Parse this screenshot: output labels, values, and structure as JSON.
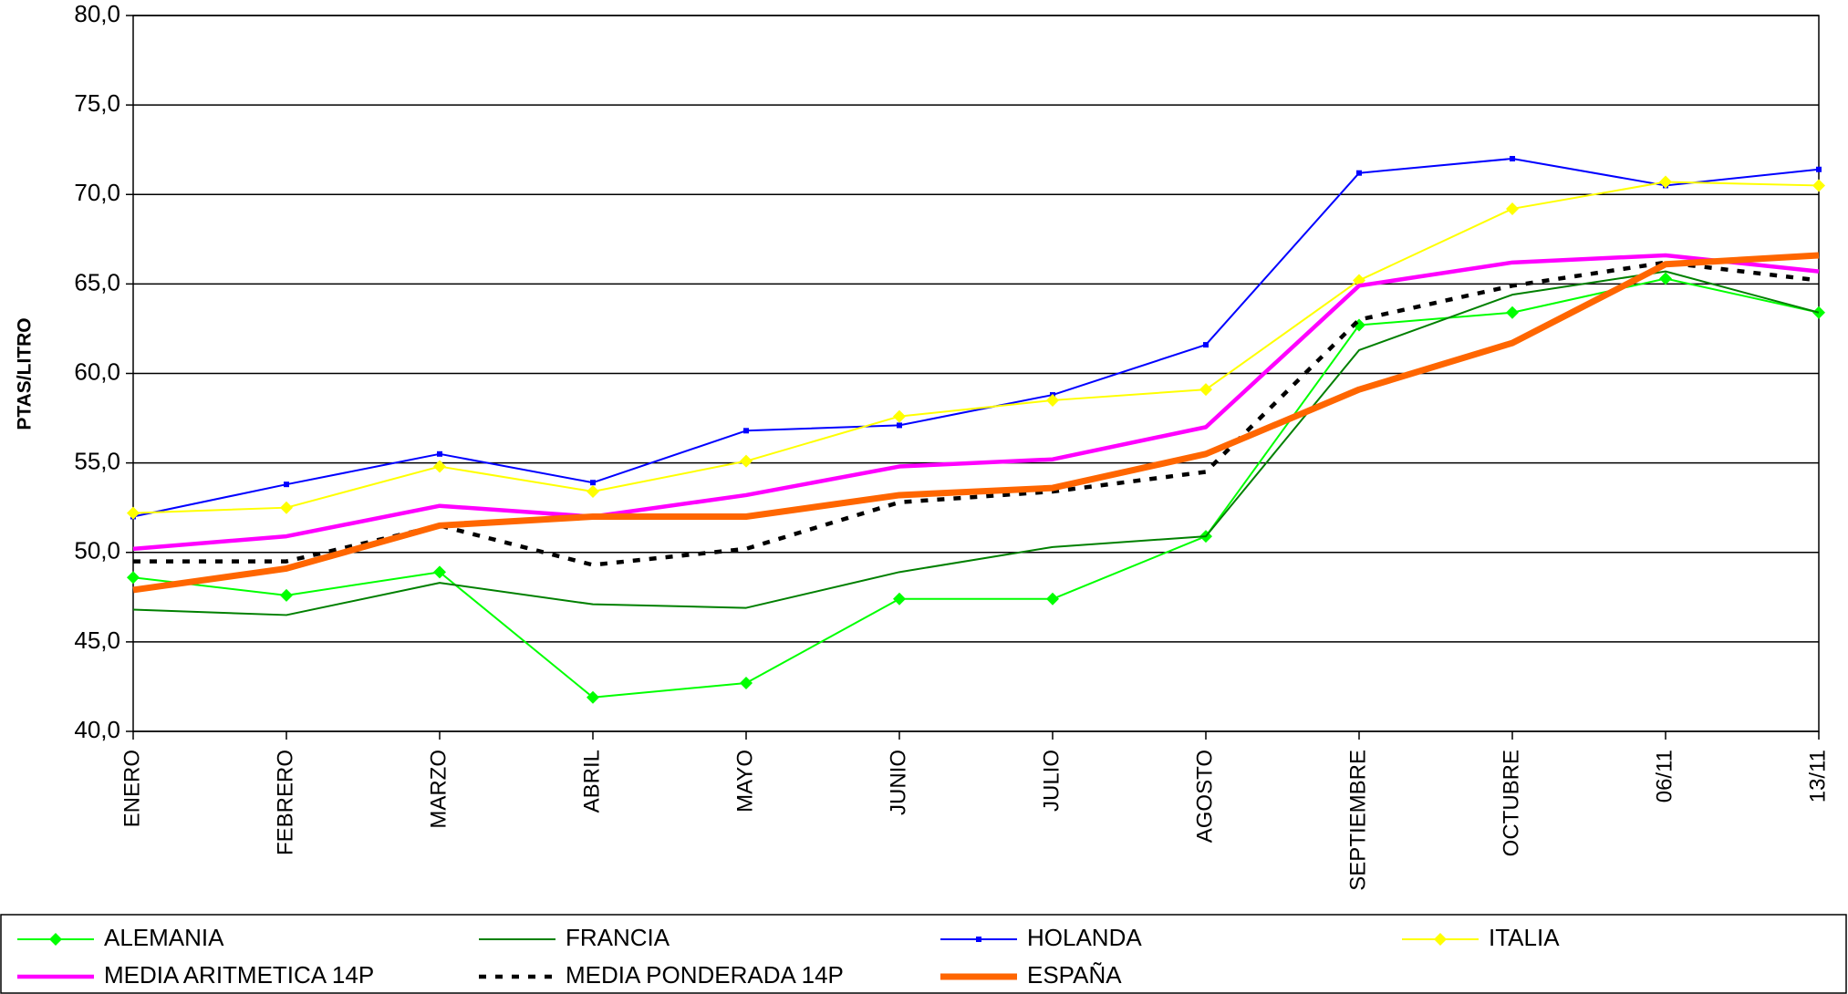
{
  "chart_data": {
    "type": "line",
    "ylabel": "PTAS/LITRO",
    "categories": [
      "ENERO",
      "FEBRERO",
      "MARZO",
      "ABRIL",
      "MAYO",
      "JUNIO",
      "JULIO",
      "AGOSTO",
      "SEPTIEMBRE",
      "OCTUBRE",
      "06/11",
      "13/11"
    ],
    "ylim": [
      40,
      80
    ],
    "yticks": [
      {
        "value": 40,
        "label": "40,0"
      },
      {
        "value": 45,
        "label": "45,0"
      },
      {
        "value": 50,
        "label": "50,0"
      },
      {
        "value": 55,
        "label": "55,0"
      },
      {
        "value": 60,
        "label": "60,0"
      },
      {
        "value": 65,
        "label": "65,0"
      },
      {
        "value": 70,
        "label": "70,0"
      },
      {
        "value": 75,
        "label": "75,0"
      },
      {
        "value": 80,
        "label": "80,0"
      }
    ],
    "grid": true,
    "legend": "bottom",
    "series": [
      {
        "name": "ALEMANIA",
        "color": "#00ff00",
        "marker": "diamond",
        "values": [
          48.6,
          47.6,
          48.9,
          41.9,
          42.7,
          47.4,
          47.4,
          50.9,
          62.7,
          63.4,
          65.3,
          63.4
        ]
      },
      {
        "name": "FRANCIA",
        "color": "#008000",
        "values": [
          46.8,
          46.5,
          48.3,
          47.1,
          46.9,
          48.9,
          50.3,
          50.9,
          61.3,
          64.4,
          65.7,
          63.4
        ]
      },
      {
        "name": "HOLANDA",
        "color": "#0000ff",
        "marker": "square",
        "values": [
          52.0,
          53.8,
          55.5,
          53.9,
          56.8,
          57.1,
          58.8,
          61.6,
          71.2,
          72.0,
          70.5,
          71.4
        ]
      },
      {
        "name": "ITALIA",
        "color": "#ffff00",
        "marker": "diamond",
        "values": [
          52.2,
          52.5,
          54.8,
          53.4,
          55.1,
          57.6,
          58.5,
          59.1,
          65.2,
          69.2,
          70.7,
          70.5
        ]
      },
      {
        "name": "MEDIA ARITMETICA 14P",
        "color": "#ff00ff",
        "width": "thick",
        "values": [
          50.2,
          50.9,
          52.6,
          52.0,
          53.2,
          54.8,
          55.2,
          57.0,
          64.9,
          66.2,
          66.6,
          65.7
        ]
      },
      {
        "name": "MEDIA PONDERADA 14P",
        "color": "#000000",
        "width": "thick",
        "dash": "dashed",
        "values": [
          49.5,
          49.5,
          51.5,
          49.3,
          50.2,
          52.8,
          53.4,
          54.5,
          63.0,
          64.9,
          66.2,
          65.2
        ]
      },
      {
        "name": "ESPAÑA",
        "color": "#ff6600",
        "width": "heavy",
        "values": [
          47.9,
          49.1,
          51.5,
          52.0,
          52.0,
          53.2,
          53.6,
          55.5,
          59.1,
          61.7,
          66.1,
          66.6
        ]
      }
    ]
  }
}
